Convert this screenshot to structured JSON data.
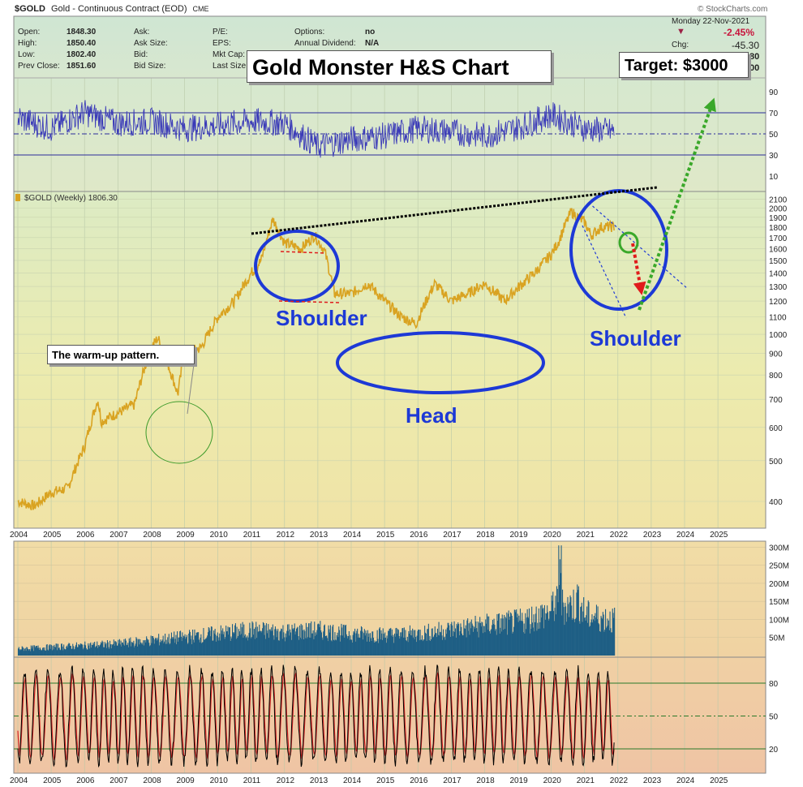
{
  "header": {
    "symbol": "$GOLD",
    "description": "Gold - Continuous Contract (EOD)",
    "exchange": "CME",
    "watermark": "© StockCharts.com",
    "date": "Monday  22-Nov-2021",
    "change_pct": "-2.45%",
    "chg_label": "Chg:",
    "chg_value": "-45.30",
    "partial_1": "80",
    "partial_2": "00",
    "quote": [
      {
        "label": "Open:",
        "value": "1848.30"
      },
      {
        "label": "High:",
        "value": "1850.40"
      },
      {
        "label": "Low:",
        "value": "1802.40"
      },
      {
        "label": "Prev Close:",
        "value": "1851.60"
      }
    ],
    "col2": [
      "Ask:",
      "Ask Size:",
      "Bid:",
      "Bid Size:"
    ],
    "col3": [
      "P/E:",
      "EPS:",
      "Mkt Cap:",
      "Last Size"
    ],
    "col4": [
      {
        "label": "Options:",
        "value": "no"
      },
      {
        "label": "Annual Dividend:",
        "value": "N/A"
      }
    ]
  },
  "annotations": {
    "title": "Gold Monster H&S Chart",
    "target": "Target: $3000",
    "warmup": "The warm-up pattern.",
    "left_shoulder": "Shoulder",
    "head": "Head",
    "right_shoulder": "Shoulder"
  },
  "colors": {
    "price": "#d9a321",
    "volume": "#1f5f85",
    "rsi": "#3b3bb8",
    "annotation": "#1d39d6",
    "neckline": "#000000",
    "target_arrow": "#3aa82a",
    "down_arrow": "#e01b1b",
    "stoch_k": "#000000",
    "stoch_d": "#d42222"
  },
  "chart_data": {
    "rsi": {
      "type": "line",
      "ticks": [
        "90",
        "70",
        "50",
        "30",
        "10"
      ],
      "ylim": [
        0,
        100
      ],
      "x": [
        2004,
        2005,
        2006,
        2007,
        2008,
        2009,
        2010,
        2011,
        2012,
        2013,
        2014,
        2015,
        2016,
        2017,
        2018,
        2019,
        2020,
        2021,
        2021.9
      ],
      "values": [
        65,
        55,
        70,
        60,
        62,
        55,
        58,
        62,
        60,
        38,
        45,
        48,
        55,
        52,
        48,
        56,
        68,
        55,
        52
      ]
    },
    "price": {
      "type": "line",
      "legend": "$GOLD (Weekly) 1806.30",
      "ticks": [
        "2100",
        "2000",
        "1900",
        "1800",
        "1700",
        "1600",
        "1500",
        "1400",
        "1300",
        "1200",
        "1100",
        "1000",
        "900",
        "800",
        "700",
        "600",
        "500",
        "400"
      ],
      "ylim": [
        350,
        2150
      ],
      "log_scale": true,
      "x": [
        2004,
        2004.5,
        2005,
        2005.5,
        2006,
        2006.4,
        2006.5,
        2007,
        2007.5,
        2008,
        2008.2,
        2008.8,
        2009,
        2009.5,
        2010,
        2010.5,
        2011,
        2011.3,
        2011.65,
        2012,
        2012.5,
        2012.9,
        2013.2,
        2013.5,
        2014,
        2014.5,
        2015,
        2015.5,
        2015.95,
        2016.5,
        2017,
        2017.5,
        2018,
        2018.6,
        2019,
        2019.5,
        2020,
        2020.2,
        2020.6,
        2020.8,
        2021,
        2021.2,
        2021.5,
        2021.9
      ],
      "values": [
        400,
        390,
        420,
        430,
        540,
        700,
        620,
        650,
        680,
        930,
        980,
        720,
        900,
        930,
        1100,
        1200,
        1400,
        1500,
        1880,
        1650,
        1600,
        1720,
        1580,
        1250,
        1250,
        1320,
        1200,
        1100,
        1060,
        1320,
        1200,
        1250,
        1320,
        1200,
        1290,
        1400,
        1550,
        1650,
        1960,
        1900,
        1850,
        1720,
        1800,
        1806
      ]
    },
    "volume": {
      "type": "bar",
      "ticks": [
        "300M",
        "250M",
        "200M",
        "150M",
        "100M",
        "50M"
      ],
      "ylim": [
        0,
        310
      ],
      "x": [
        2004,
        2005,
        2006,
        2007,
        2008,
        2009,
        2010,
        2011,
        2012,
        2013,
        2014,
        2015,
        2016,
        2017,
        2018,
        2019,
        2020,
        2020.25,
        2021,
        2021.9
      ],
      "values": [
        20,
        25,
        30,
        35,
        45,
        55,
        65,
        75,
        70,
        75,
        65,
        62,
        65,
        78,
        90,
        100,
        130,
        305,
        120,
        105
      ]
    },
    "stochastic": {
      "type": "line",
      "ticks": [
        "80",
        "50",
        "20"
      ],
      "ylim": [
        0,
        100
      ],
      "x": [
        2004,
        2005,
        2006,
        2007,
        2008,
        2009,
        2010,
        2011,
        2012,
        2013,
        2014,
        2015,
        2016,
        2017,
        2018,
        2019,
        2020,
        2021,
        2021.9
      ],
      "values": [
        80,
        20,
        85,
        30,
        70,
        15,
        75,
        90,
        20,
        10,
        60,
        15,
        85,
        30,
        75,
        40,
        85,
        15,
        80
      ]
    },
    "x_axis": {
      "labels": [
        "2004",
        "2005",
        "2006",
        "2007",
        "2008",
        "2009",
        "2010",
        "2011",
        "2012",
        "2013",
        "2014",
        "2015",
        "2016",
        "2017",
        "2018",
        "2019",
        "2020",
        "2021",
        "2022",
        "2023",
        "2024",
        "2025"
      ]
    },
    "neckline": {
      "x": [
        2011.0,
        2022.6
      ],
      "values": [
        1900,
        2120
      ]
    },
    "target_arrow": {
      "x": [
        2022.15,
        2024.35
      ],
      "values": [
        1480,
        2950
      ]
    }
  }
}
